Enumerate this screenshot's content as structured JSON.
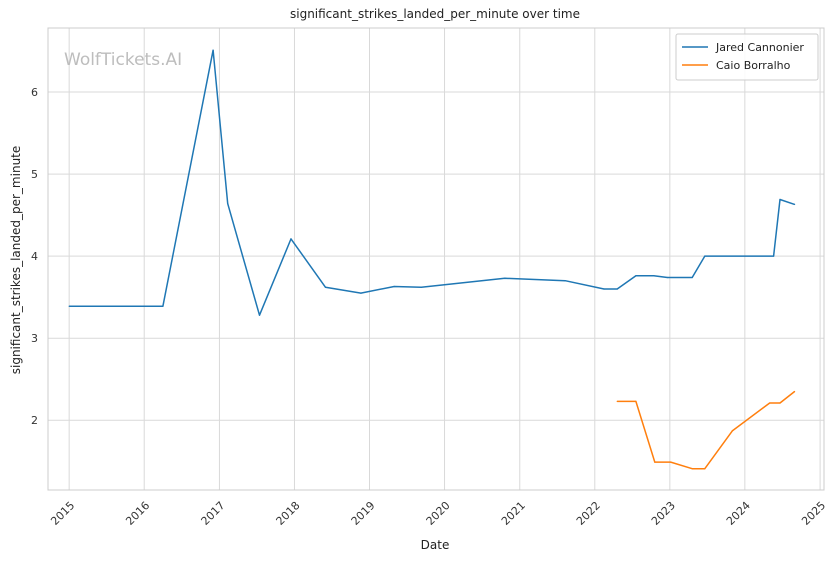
{
  "chart_data": {
    "type": "line",
    "title": "significant_strikes_landed_per_minute over time",
    "xlabel": "Date",
    "ylabel": "significant_strikes_landed_per_minute",
    "watermark": "WolfTickets.AI",
    "xlim": [
      "2014-09-20",
      "2025-01-20"
    ],
    "ylim": [
      1.15,
      6.78
    ],
    "x_ticks": [
      "2015-01-01",
      "2016-01-01",
      "2017-01-01",
      "2018-01-01",
      "2019-01-01",
      "2020-01-01",
      "2021-01-01",
      "2022-01-01",
      "2023-01-01",
      "2024-01-01",
      "2025-01-01"
    ],
    "x_tick_labels": [
      "2015",
      "2016",
      "2017",
      "2018",
      "2019",
      "2020",
      "2021",
      "2022",
      "2023",
      "2024",
      "2025"
    ],
    "y_ticks": [
      2,
      3,
      4,
      5,
      6
    ],
    "y_tick_labels": [
      "2",
      "3",
      "4",
      "5",
      "6"
    ],
    "grid": true,
    "legend_position": "top-right",
    "series": [
      {
        "name": "Jared Cannonier",
        "color": "#1f77b4",
        "points": [
          [
            "2015-01-01",
            3.39
          ],
          [
            "2016-04-01",
            3.39
          ],
          [
            "2016-12-01",
            6.51
          ],
          [
            "2017-02-10",
            4.64
          ],
          [
            "2017-07-15",
            3.28
          ],
          [
            "2017-12-15",
            4.21
          ],
          [
            "2018-06-01",
            3.62
          ],
          [
            "2018-11-20",
            3.55
          ],
          [
            "2019-05-01",
            3.63
          ],
          [
            "2019-09-10",
            3.62
          ],
          [
            "2020-10-20",
            3.73
          ],
          [
            "2021-08-10",
            3.7
          ],
          [
            "2022-02-15",
            3.6
          ],
          [
            "2022-04-20",
            3.6
          ],
          [
            "2022-07-20",
            3.76
          ],
          [
            "2022-10-15",
            3.76
          ],
          [
            "2022-12-20",
            3.74
          ],
          [
            "2023-04-20",
            3.74
          ],
          [
            "2023-06-20",
            4.0
          ],
          [
            "2024-05-20",
            4.0
          ],
          [
            "2024-06-20",
            4.69
          ],
          [
            "2024-08-30",
            4.63
          ]
        ]
      },
      {
        "name": "Caio Borralho",
        "color": "#ff7f0e",
        "points": [
          [
            "2022-04-20",
            2.23
          ],
          [
            "2022-07-20",
            2.23
          ],
          [
            "2022-10-20",
            1.49
          ],
          [
            "2023-01-05",
            1.49
          ],
          [
            "2023-04-20",
            1.41
          ],
          [
            "2023-06-20",
            1.41
          ],
          [
            "2023-11-01",
            1.87
          ],
          [
            "2024-05-01",
            2.21
          ],
          [
            "2024-06-20",
            2.21
          ],
          [
            "2024-08-30",
            2.35
          ]
        ]
      }
    ]
  }
}
